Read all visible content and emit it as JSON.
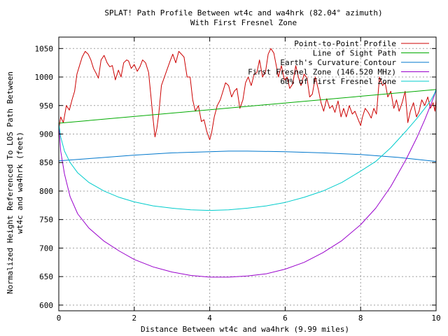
{
  "chart_data": {
    "type": "line",
    "title": "SPLAT! Path Profile Between wt4c and wa4hrk (82.04° azimuth)",
    "subtitle": "With First Fresnel Zone",
    "xlabel": "Distance Between wt4c and wa4hrk (9.99 miles)",
    "ylabel_line1": "Normalized Height Referenced To LOS Path Between",
    "ylabel_line2": "wt4c and wa4hrk (feet)",
    "xlim": [
      0,
      10
    ],
    "ylim": [
      590,
      1070
    ],
    "x_ticks": [
      0,
      2,
      4,
      6,
      8,
      10
    ],
    "x_tick_labels": [
      "0",
      "2",
      "4",
      "6",
      "8",
      "10"
    ],
    "y_ticks": [
      600,
      650,
      700,
      750,
      800,
      850,
      900,
      950,
      1000,
      1050
    ],
    "y_tick_labels": [
      "600",
      "650",
      "700",
      "750",
      "800",
      "850",
      "900",
      "950",
      "1000",
      "1050"
    ],
    "grid": true,
    "legend_position": "top-right",
    "series": [
      {
        "name": "Point-to-Point Profile",
        "color": "#cc0000",
        "x": [
          0.0,
          0.05,
          0.12,
          0.2,
          0.28,
          0.35,
          0.42,
          0.48,
          0.55,
          0.62,
          0.7,
          0.78,
          0.85,
          0.92,
          1.0,
          1.05,
          1.12,
          1.2,
          1.28,
          1.35,
          1.42,
          1.5,
          1.58,
          1.65,
          1.72,
          1.8,
          1.85,
          1.92,
          2.0,
          2.08,
          2.15,
          2.22,
          2.3,
          2.38,
          2.45,
          2.5,
          2.55,
          2.6,
          2.65,
          2.72,
          2.8,
          2.88,
          2.95,
          3.02,
          3.1,
          3.18,
          3.25,
          3.32,
          3.4,
          3.48,
          3.55,
          3.62,
          3.7,
          3.78,
          3.85,
          3.92,
          4.0,
          4.05,
          4.12,
          4.2,
          4.28,
          4.35,
          4.42,
          4.5,
          4.58,
          4.65,
          4.72,
          4.8,
          4.88,
          4.95,
          5.02,
          5.1,
          5.18,
          5.25,
          5.32,
          5.4,
          5.48,
          5.55,
          5.62,
          5.7,
          5.75,
          5.82,
          5.9,
          5.98,
          6.05,
          6.12,
          6.2,
          6.28,
          6.35,
          6.42,
          6.5,
          6.58,
          6.65,
          6.72,
          6.8,
          6.88,
          6.95,
          7.02,
          7.1,
          7.18,
          7.25,
          7.32,
          7.4,
          7.48,
          7.55,
          7.62,
          7.7,
          7.78,
          7.85,
          7.92,
          8.0,
          8.05,
          8.12,
          8.2,
          8.28,
          8.35,
          8.42,
          8.5,
          8.58,
          8.65,
          8.72,
          8.8,
          8.88,
          8.95,
          9.02,
          9.1,
          9.18,
          9.25,
          9.32,
          9.4,
          9.48,
          9.55,
          9.62,
          9.7,
          9.78,
          9.85,
          9.92,
          9.97,
          10.0
        ],
        "values": [
          908,
          930,
          920,
          950,
          942,
          960,
          975,
          1005,
          1020,
          1035,
          1045,
          1040,
          1030,
          1015,
          1005,
          998,
          1030,
          1038,
          1025,
          1018,
          1020,
          995,
          1012,
          1000,
          1025,
          1030,
          1028,
          1015,
          1022,
          1010,
          1018,
          1030,
          1025,
          1008,
          960,
          925,
          895,
          910,
          935,
          985,
          1000,
          1015,
          1028,
          1040,
          1025,
          1045,
          1040,
          1035,
          1000,
          1000,
          960,
          940,
          950,
          922,
          925,
          905,
          890,
          902,
          930,
          950,
          960,
          975,
          990,
          985,
          965,
          975,
          980,
          945,
          960,
          990,
          1000,
          985,
          1005,
          1008,
          1030,
          1000,
          1010,
          1040,
          1050,
          1042,
          1025,
          1000,
          1020,
          995,
          1000,
          980,
          988,
          1020,
          1000,
          985,
          1005,
          998,
          965,
          970,
          1000,
          978,
          955,
          940,
          962,
          945,
          950,
          938,
          958,
          930,
          945,
          930,
          950,
          935,
          940,
          928,
          915,
          930,
          945,
          938,
          928,
          945,
          935,
          1000,
          985,
          990,
          965,
          975,
          945,
          960,
          940,
          955,
          975,
          920,
          940,
          955,
          930,
          940,
          960,
          950,
          965,
          945,
          955,
          940,
          960
        ]
      },
      {
        "name": "Line of Sight Path",
        "color": "#00aa00",
        "x": [
          0,
          10
        ],
        "values": [
          919,
          978
        ]
      },
      {
        "name": "Earth's Curvature Contour",
        "color": "#0077cc",
        "x": [
          0,
          1,
          2,
          3,
          4,
          4.5,
          5,
          6,
          7,
          8,
          9,
          10
        ],
        "values": [
          853,
          858,
          863,
          867,
          869,
          870,
          870,
          869,
          867,
          864,
          859,
          852
        ]
      },
      {
        "name": "First Fresnel Zone (146.520 MHz)",
        "color": "#9900cc",
        "x": [
          0,
          0.05,
          0.15,
          0.3,
          0.5,
          0.8,
          1.2,
          1.6,
          2.0,
          2.5,
          3.0,
          3.5,
          4.0,
          4.5,
          5.0,
          5.5,
          6.0,
          6.5,
          7.0,
          7.5,
          8.0,
          8.4,
          8.8,
          9.2,
          9.5,
          9.7,
          9.85,
          9.95,
          10.0
        ],
        "values": [
          919,
          870,
          830,
          790,
          760,
          735,
          712,
          695,
          680,
          667,
          658,
          652,
          649,
          649,
          651,
          655,
          663,
          675,
          692,
          713,
          741,
          770,
          808,
          855,
          895,
          925,
          950,
          967,
          978
        ]
      },
      {
        "name": "60% of First Fresnel Zone",
        "color": "#00cccc",
        "x": [
          0,
          0.05,
          0.15,
          0.3,
          0.5,
          0.8,
          1.2,
          1.6,
          2.0,
          2.5,
          3.0,
          3.5,
          4.0,
          4.5,
          5.0,
          5.5,
          6.0,
          6.5,
          7.0,
          7.5,
          8.0,
          8.4,
          8.8,
          9.2,
          9.5,
          9.7,
          9.85,
          9.95,
          10.0
        ],
        "values": [
          919,
          895,
          870,
          850,
          832,
          815,
          800,
          789,
          781,
          774,
          770,
          767,
          766,
          767,
          770,
          774,
          780,
          789,
          800,
          815,
          835,
          852,
          876,
          905,
          928,
          945,
          958,
          970,
          978
        ]
      }
    ]
  }
}
